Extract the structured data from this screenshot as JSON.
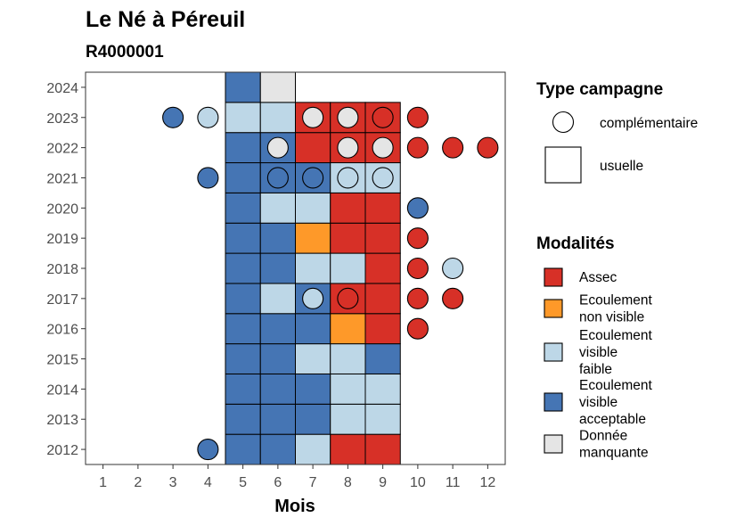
{
  "chart_data": {
    "type": "heatmap",
    "title": "Le Né à Péreuil",
    "subtitle": "R4000001",
    "xlabel": "Mois",
    "ylabel": "",
    "x_ticks": [
      1,
      2,
      3,
      4,
      5,
      6,
      7,
      8,
      9,
      10,
      11,
      12
    ],
    "y_ticks": [
      2012,
      2013,
      2014,
      2015,
      2016,
      2017,
      2018,
      2019,
      2020,
      2021,
      2022,
      2023,
      2024
    ],
    "xlim": [
      0.5,
      12.5
    ],
    "ylim": [
      2011.5,
      2024.5
    ],
    "grid": false,
    "legend_position": "right",
    "modalities": [
      {
        "key": "assec",
        "label": [
          "Assec"
        ],
        "color": "#D73027"
      },
      {
        "key": "nv",
        "label": [
          "Ecoulement",
          "non visible"
        ],
        "color": "#FE9929"
      },
      {
        "key": "faible",
        "label": [
          "Ecoulement",
          "visible",
          "faible"
        ],
        "color": "#BDD7E7"
      },
      {
        "key": "acceptable",
        "label": [
          "Ecoulement",
          "visible",
          "acceptable"
        ],
        "color": "#4575B4"
      },
      {
        "key": "manquante",
        "label": [
          "Donnée",
          "manquante"
        ],
        "color": "#E5E5E5"
      }
    ],
    "campaign_types": {
      "title": "Type campagne",
      "items": [
        {
          "key": "complementaire",
          "label": "complémentaire",
          "shape": "circle"
        },
        {
          "key": "usuelle",
          "label": "usuelle",
          "shape": "square"
        }
      ]
    },
    "modalities_title": "Modalités",
    "usuelle": [
      {
        "year": 2012,
        "values": {
          "5": "acceptable",
          "6": "acceptable",
          "7": "faible",
          "8": "assec",
          "9": "assec"
        }
      },
      {
        "year": 2013,
        "values": {
          "5": "acceptable",
          "6": "acceptable",
          "7": "acceptable",
          "8": "faible",
          "9": "faible"
        }
      },
      {
        "year": 2014,
        "values": {
          "5": "acceptable",
          "6": "acceptable",
          "7": "acceptable",
          "8": "faible",
          "9": "faible"
        }
      },
      {
        "year": 2015,
        "values": {
          "5": "acceptable",
          "6": "acceptable",
          "7": "faible",
          "8": "faible",
          "9": "acceptable"
        }
      },
      {
        "year": 2016,
        "values": {
          "5": "acceptable",
          "6": "acceptable",
          "7": "acceptable",
          "8": "nv",
          "9": "assec"
        }
      },
      {
        "year": 2017,
        "values": {
          "5": "acceptable",
          "6": "faible",
          "7": "acceptable",
          "8": "assec",
          "9": "assec"
        }
      },
      {
        "year": 2018,
        "values": {
          "5": "acceptable",
          "6": "acceptable",
          "7": "faible",
          "8": "faible",
          "9": "assec"
        }
      },
      {
        "year": 2019,
        "values": {
          "5": "acceptable",
          "6": "acceptable",
          "7": "nv",
          "8": "assec",
          "9": "assec"
        }
      },
      {
        "year": 2020,
        "values": {
          "5": "acceptable",
          "6": "faible",
          "7": "faible",
          "8": "assec",
          "9": "assec"
        }
      },
      {
        "year": 2021,
        "values": {
          "5": "acceptable",
          "6": "acceptable",
          "7": "acceptable",
          "8": "faible",
          "9": "faible"
        }
      },
      {
        "year": 2022,
        "values": {
          "5": "acceptable",
          "6": "acceptable",
          "7": "assec",
          "8": "assec",
          "9": "assec"
        }
      },
      {
        "year": 2023,
        "values": {
          "5": "faible",
          "6": "faible",
          "7": "assec",
          "8": "assec",
          "9": "assec"
        }
      },
      {
        "year": 2024,
        "values": {
          "5": "acceptable",
          "6": "manquante"
        }
      }
    ],
    "complementaire": [
      {
        "year": 2012,
        "month": 4,
        "value": "acceptable"
      },
      {
        "year": 2016,
        "month": 10,
        "value": "assec"
      },
      {
        "year": 2017,
        "month": 7,
        "value": "faible"
      },
      {
        "year": 2017,
        "month": 8,
        "value": "assec"
      },
      {
        "year": 2017,
        "month": 10,
        "value": "assec"
      },
      {
        "year": 2017,
        "month": 11,
        "value": "assec"
      },
      {
        "year": 2018,
        "month": 10,
        "value": "assec"
      },
      {
        "year": 2018,
        "month": 11,
        "value": "faible"
      },
      {
        "year": 2019,
        "month": 10,
        "value": "assec"
      },
      {
        "year": 2020,
        "month": 10,
        "value": "acceptable"
      },
      {
        "year": 2021,
        "month": 4,
        "value": "acceptable"
      },
      {
        "year": 2021,
        "month": 6,
        "value": "acceptable"
      },
      {
        "year": 2021,
        "month": 7,
        "value": "acceptable"
      },
      {
        "year": 2021,
        "month": 8,
        "value": "faible"
      },
      {
        "year": 2021,
        "month": 9,
        "value": "faible"
      },
      {
        "year": 2022,
        "month": 6,
        "value": "manquante"
      },
      {
        "year": 2022,
        "month": 8,
        "value": "manquante"
      },
      {
        "year": 2022,
        "month": 9,
        "value": "manquante"
      },
      {
        "year": 2022,
        "month": 10,
        "value": "assec"
      },
      {
        "year": 2022,
        "month": 11,
        "value": "assec"
      },
      {
        "year": 2022,
        "month": 12,
        "value": "assec"
      },
      {
        "year": 2023,
        "month": 3,
        "value": "acceptable"
      },
      {
        "year": 2023,
        "month": 4,
        "value": "faible"
      },
      {
        "year": 2023,
        "month": 7,
        "value": "manquante"
      },
      {
        "year": 2023,
        "month": 8,
        "value": "manquante"
      },
      {
        "year": 2023,
        "month": 9,
        "value": "assec"
      },
      {
        "year": 2023,
        "month": 10,
        "value": "assec"
      }
    ]
  }
}
